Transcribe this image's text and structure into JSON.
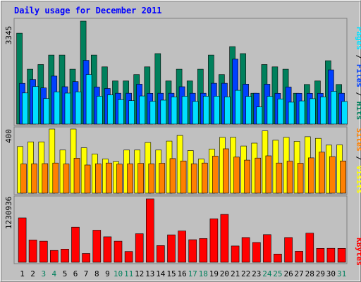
{
  "chart_data": {
    "type": "bar",
    "title": "Daily usage for December 2011",
    "categories": [
      "1",
      "2",
      "3",
      "4",
      "5",
      "6",
      "7",
      "8",
      "9",
      "10",
      "11",
      "12",
      "13",
      "14",
      "15",
      "16",
      "17",
      "18",
      "19",
      "20",
      "21",
      "22",
      "23",
      "24",
      "25",
      "26",
      "27",
      "28",
      "29",
      "30",
      "31"
    ],
    "weekend_days": [
      3,
      4,
      10,
      11,
      17,
      18,
      24,
      25,
      31
    ],
    "panels": [
      {
        "id": "hits",
        "ymax": 3345,
        "ymax_label": "3345",
        "series": [
          {
            "name": "Hits",
            "color": "#00805c",
            "values": [
              2954,
              1784,
              1936,
              2243,
              2243,
              1784,
              3345,
              2243,
              1860,
              1403,
              1403,
              1611,
              1860,
              2291,
              1403,
              1784,
              1403,
              1784,
              2243,
              1611,
              2519,
              2291,
              1003,
              1936,
              1861,
              1784,
              1003,
              1287,
              1403,
              2059,
              1287
            ]
          },
          {
            "name": "Files",
            "color": "#0040ff",
            "values": [
              1325,
              1450,
              1175,
              1561,
              1215,
              1382,
              2072,
              1206,
              1158,
              1003,
              1004,
              1297,
              1001,
              1004,
              1004,
              1215,
              1003,
              1004,
              1326,
              1326,
              2110,
              1300,
              1004,
              1297,
              1001,
              1205,
              1001,
              1002,
              1002,
              1761,
              1003
            ]
          },
          {
            "name": "Pages",
            "color": "#00e0ff",
            "values": [
              1012,
              1223,
              832,
              1049,
              1008,
              1049,
              1611,
              907,
              948,
              797,
              763,
              914,
              742,
              780,
              881,
              906,
              737,
              906,
              907,
              885,
              1098,
              900,
              556,
              902,
              818,
              713,
              753,
              828,
              883,
              1066,
              735
            ]
          }
        ],
        "axis_label": "Pages / Files / Hits"
      },
      {
        "id": "visits",
        "ymax": 400,
        "ymax_label": "400",
        "series": [
          {
            "name": "Visits",
            "color": "#ffff00",
            "values": [
              291,
              320,
              320,
              400,
              269,
              400,
              283,
              244,
              213,
              197,
              269,
              269,
              316,
              269,
              325,
              360,
              266,
              213,
              275,
              348,
              348,
              294,
              312,
              388,
              330,
              348,
              323,
              352,
              342,
              300,
              301
            ]
          },
          {
            "name": "Sites",
            "color": "#ff8000",
            "values": [
              182,
              183,
              184,
              188,
              182,
              218,
              176,
              183,
              188,
              181,
              183,
              186,
              183,
              187,
              216,
              201,
              183,
              188,
              231,
              277,
              225,
              206,
              219,
              233,
              188,
              200,
              187,
              220,
              256,
              228,
              201
            ]
          }
        ],
        "axis_label": "Sites / Visits"
      },
      {
        "id": "kbytes",
        "ymax": 1230936,
        "ymax_label": "1230936",
        "series": [
          {
            "name": "KBytes",
            "color": "#ff0000",
            "values": [
              861400,
              432700,
              409100,
              230000,
              256000,
              681400,
              171500,
              622200,
              494400,
              409100,
              208900,
              554000,
              1230936,
              324600,
              531600,
              607100,
              437400,
              461500,
              842800,
              929100,
              315800,
              480500,
              384800,
              535500,
              159900,
              480500,
              214000,
              564400,
              269000,
              271000,
              269000
            ]
          }
        ],
        "axis_label": "KBytes"
      }
    ]
  }
}
